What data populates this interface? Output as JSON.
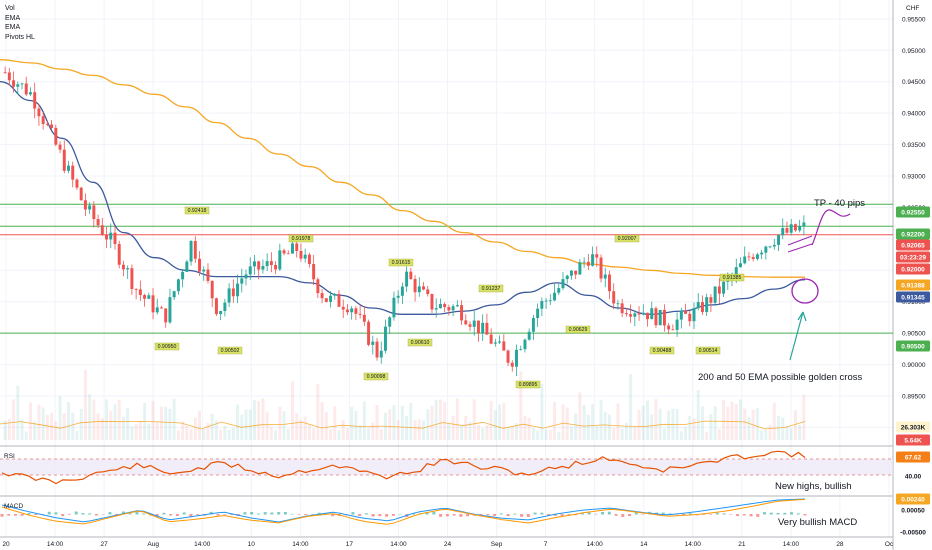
{
  "legend": [
    "Vol",
    "EMA",
    "EMA",
    "Pivots HL"
  ],
  "currency": "CHF",
  "x_ticks": [
    "20",
    "14:00",
    "27",
    "Aug",
    "14:00",
    "10",
    "14:00",
    "17",
    "14:00",
    "24",
    "Sep",
    "7",
    "14:00",
    "14",
    "14:00",
    "21",
    "14:00",
    "28",
    "Oc"
  ],
  "y_ticks": [
    "0.95500",
    "0.95000",
    "0.94500",
    "0.94000",
    "0.93500",
    "0.93000",
    "0.92500",
    "0.92000",
    "0.91500",
    "0.91000",
    "0.90500",
    "0.90000",
    "0.89500",
    "0.89000"
  ],
  "right_badges": [
    {
      "text": "0.92550",
      "type": "green"
    },
    {
      "text": "0.92200",
      "type": "green"
    },
    {
      "text": "0.92065",
      "type": "red"
    },
    {
      "text": "03:23:29",
      "type": "red"
    },
    {
      "text": "0.92000",
      "type": "red"
    },
    {
      "text": "0.91388",
      "type": "orange"
    },
    {
      "text": "0.91345",
      "type": "blue"
    },
    {
      "text": "0.90500",
      "type": "green"
    },
    {
      "text": "26.303K",
      "type": "vol"
    }
  ],
  "pivot_labels": [
    "0.92418",
    "0.91978",
    "0.92007",
    "0.91615",
    "0.91237",
    "0.91385",
    "0.90950",
    "0.90502",
    "0.90610",
    "0.90629",
    "0.90488",
    "0.90514",
    "0.90098",
    "0.89895"
  ],
  "annotations": {
    "tp": "TP - 40 pips",
    "golden_cross": "200 and 50 EMA possible golden cross",
    "rsi_note": "New highs, bullish",
    "macd_note": "Very bullish MACD"
  },
  "rsi": {
    "label": "RSI",
    "levels": [
      "5.64K",
      "67.62"
    ],
    "tick": "40.00"
  },
  "macd": {
    "label": "MACD",
    "levels": [
      "0.00240",
      "0.00050"
    ],
    "tick": "-0.00500"
  },
  "colors": {
    "up": "#26a69a",
    "down": "#ef5350",
    "ema200": "#f5a623",
    "ema50": "#3d5a9e",
    "support": "#4caf50",
    "rsi_line": "#e65100",
    "macd_line": "#2196f3",
    "signal_line": "#ff9800",
    "annot": "#26a69a",
    "circle": "#9c27b0"
  },
  "chart_data": {
    "type": "candlestick",
    "symbol_quote": "CHF",
    "ylim": [
      0.888,
      0.958
    ],
    "horizontal_levels": [
      0.9255,
      0.922,
      0.92065,
      0.905
    ],
    "ema200": [
      0.9485,
      0.948,
      0.947,
      0.946,
      0.9445,
      0.943,
      0.941,
      0.9385,
      0.936,
      0.9335,
      0.9315,
      0.929,
      0.927,
      0.9245,
      0.9228,
      0.921,
      0.9195,
      0.918,
      0.917,
      0.916,
      0.9155,
      0.915,
      0.9145,
      0.9142,
      0.914,
      0.9139,
      0.9139
    ],
    "ema50": [
      0.945,
      0.942,
      0.936,
      0.929,
      0.921,
      0.917,
      0.915,
      0.914,
      0.914,
      0.914,
      0.913,
      0.911,
      0.909,
      0.908,
      0.908,
      0.9085,
      0.9095,
      0.9115,
      0.913,
      0.911,
      0.909,
      0.908,
      0.9085,
      0.9095,
      0.9105,
      0.912,
      0.9135
    ],
    "price": [
      0.9465,
      0.943,
      0.934,
      0.925,
      0.9195,
      0.9115,
      0.9075,
      0.9195,
      0.9085,
      0.9145,
      0.916,
      0.9185,
      0.9105,
      0.9095,
      0.9015,
      0.9145,
      0.9095,
      0.909,
      0.905,
      0.9005,
      0.909,
      0.913,
      0.9175,
      0.9095,
      0.9085,
      0.9065,
      0.9085,
      0.9125,
      0.9175,
      0.9205,
      0.9218
    ]
  }
}
